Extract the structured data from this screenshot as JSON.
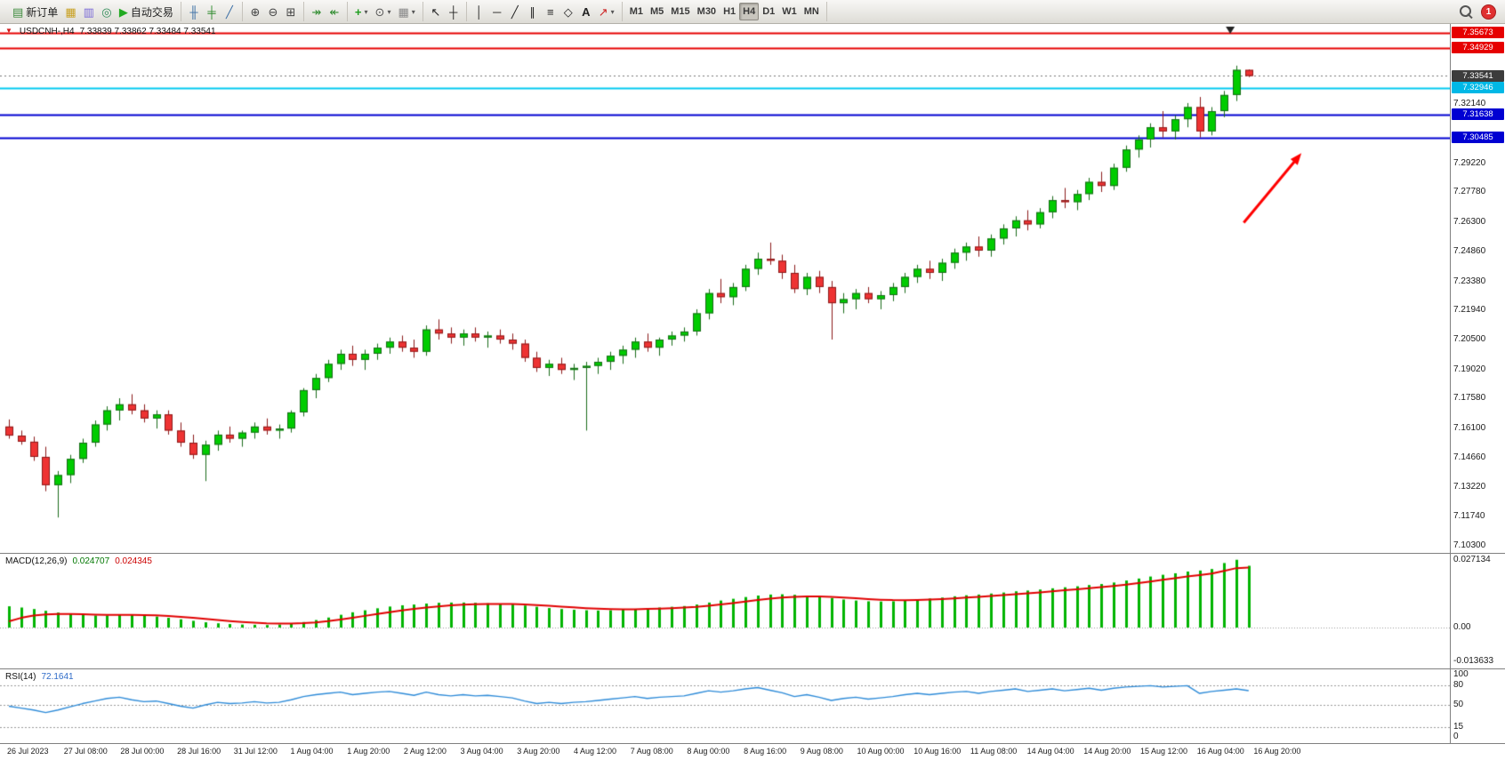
{
  "toolbar": {
    "notification_count": "1",
    "groups": [
      {
        "name": "trade-group",
        "items": [
          {
            "name": "new-order-button",
            "glyph": "▤",
            "color": "#3c8a3c",
            "label": "新订单"
          },
          {
            "name": "charts-window-button",
            "glyph": "▦",
            "color": "#c8a020"
          },
          {
            "name": "print-button",
            "glyph": "▥",
            "color": "#7a6ad8"
          },
          {
            "name": "alerts-button",
            "glyph": "◎",
            "color": "#2e8b57"
          },
          {
            "name": "autotrading-button",
            "glyph": "▶",
            "color": "#22aa22",
            "label": "自动交易"
          }
        ]
      },
      {
        "name": "chart-type-group",
        "items": [
          {
            "name": "bar-chart-button",
            "glyph": "╫",
            "color": "#3a6ea5"
          },
          {
            "name": "candlestick-chart-button",
            "glyph": "╪",
            "color": "#2e8b2e"
          },
          {
            "name": "line-chart-button",
            "glyph": "╱",
            "color": "#3a6ea5"
          }
        ]
      },
      {
        "name": "zoom-group",
        "items": [
          {
            "name": "zoom-in-button",
            "glyph": "⊕",
            "color": "#444444"
          },
          {
            "name": "zoom-out-button",
            "glyph": "⊖",
            "color": "#444444"
          },
          {
            "name": "tile-windows-button",
            "glyph": "⊞",
            "color": "#444444"
          }
        ]
      },
      {
        "name": "scroll-group",
        "items": [
          {
            "name": "auto-scroll-button",
            "glyph": "↠",
            "color": "#2e8b2e"
          },
          {
            "name": "chart-shift-button",
            "glyph": "↞",
            "color": "#2e8b2e"
          }
        ]
      },
      {
        "name": "insert-group",
        "items": [
          {
            "name": "indicators-button",
            "glyph": "+",
            "color": "#1e9e1e",
            "bold": true,
            "caret": true
          },
          {
            "name": "periods-button",
            "glyph": "⊙",
            "color": "#555555",
            "caret": true
          },
          {
            "name": "templates-button",
            "glyph": "▦",
            "color": "#888888",
            "caret": true
          }
        ]
      },
      {
        "name": "cursor-group",
        "items": [
          {
            "name": "cursor-button",
            "glyph": "↖",
            "color": "#222222"
          },
          {
            "name": "crosshair-button",
            "glyph": "┼",
            "color": "#222222"
          }
        ]
      },
      {
        "name": "draw-group",
        "items": [
          {
            "name": "vertical-line-button",
            "glyph": "│",
            "color": "#222222"
          },
          {
            "name": "horizontal-line-button",
            "glyph": "─",
            "color": "#222222"
          },
          {
            "name": "trendline-button",
            "glyph": "╱",
            "color": "#222222"
          },
          {
            "name": "channel-button",
            "glyph": "∥",
            "color": "#222222"
          },
          {
            "name": "fibonacci-button",
            "glyph": "≡",
            "color": "#222222"
          },
          {
            "name": "shapes-button",
            "glyph": "◇",
            "color": "#222222"
          },
          {
            "name": "text-button",
            "glyph": "A",
            "color": "#222222",
            "bold": true
          },
          {
            "name": "arrows-button",
            "glyph": "↗",
            "color": "#cc2222",
            "caret": true
          }
        ]
      },
      {
        "name": "timeframe-group",
        "items": [
          {
            "name": "timeframe-m1",
            "text": "M1"
          },
          {
            "name": "timeframe-m5",
            "text": "M5"
          },
          {
            "name": "timeframe-m15",
            "text": "M15"
          },
          {
            "name": "timeframe-m30",
            "text": "M30"
          },
          {
            "name": "timeframe-h1",
            "text": "H1"
          },
          {
            "name": "timeframe-h4",
            "text": "H4",
            "active": true
          },
          {
            "name": "timeframe-d1",
            "text": "D1"
          },
          {
            "name": "timeframe-w1",
            "text": "W1"
          },
          {
            "name": "timeframe-mn",
            "text": "MN"
          }
        ]
      }
    ]
  },
  "chart": {
    "symbol": "USDCNH-,H4",
    "ohlc_text": "7.33839 7.33862 7.33484 7.33541",
    "y_min": 7.0995,
    "y_max": 7.3611,
    "end_marker_index": 99.5,
    "colors": {
      "up_fill": "#00cc00",
      "up_edge": "#1a6b1a",
      "down_fill": "#ee3333",
      "down_edge": "#8b1a1a"
    },
    "price_lines": [
      {
        "label": "7.35673",
        "price": 7.35673,
        "line_color": "#e60000",
        "badge_bg": "#e60000",
        "width": 2,
        "style": "solid"
      },
      {
        "label": "7.34929",
        "price": 7.34929,
        "line_color": "#e60000",
        "badge_bg": "#e60000",
        "width": 2,
        "style": "solid"
      },
      {
        "label": "7.33541",
        "price": 7.33541,
        "line_color": "#777777",
        "badge_bg": "#3c3c3c",
        "width": 1,
        "style": "dotted"
      },
      {
        "label": "7.32946",
        "price": 7.32946,
        "line_color": "#00c8f0",
        "badge_bg": "#00b8e6",
        "width": 2,
        "style": "solid"
      },
      {
        "label": "7.31638",
        "price": 7.31638,
        "line_color": "#0000d2",
        "badge_bg": "#0000d2",
        "width": 2,
        "style": "solid"
      },
      {
        "label": "7.30485",
        "price": 7.30485,
        "line_color": "#0000d2",
        "badge_bg": "#0000d2",
        "width": 2,
        "style": "solid"
      }
    ],
    "y_ticks": [
      "7.32140",
      "7.29220",
      "7.27780",
      "7.26300",
      "7.24860",
      "7.23380",
      "7.21940",
      "7.20500",
      "7.19020",
      "7.17580",
      "7.16100",
      "7.14660",
      "7.13220",
      "7.11740",
      "7.10300"
    ],
    "x_labels": [
      "26 Jul 2023",
      "27 Jul 08:00",
      "28 Jul 00:00",
      "28 Jul 16:00",
      "31 Jul 12:00",
      "1 Aug 04:00",
      "1 Aug 20:00",
      "2 Aug 12:00",
      "3 Aug 04:00",
      "3 Aug 20:00",
      "4 Aug 12:00",
      "7 Aug 08:00",
      "8 Aug 00:00",
      "8 Aug 16:00",
      "9 Aug 08:00",
      "10 Aug 00:00",
      "10 Aug 16:00",
      "11 Aug 08:00",
      "14 Aug 04:00",
      "14 Aug 20:00",
      "15 Aug 12:00",
      "16 Aug 04:00",
      "16 Aug 20:00"
    ],
    "arrow": {
      "color": "#ff0000",
      "index_from": 100.6,
      "price_from": 7.2628,
      "index_to": 105.3,
      "price_to": 7.2972
    },
    "candles": [
      [
        7.162,
        7.1655,
        7.156,
        7.1575
      ],
      [
        7.1575,
        7.16,
        7.153,
        7.1545
      ],
      [
        7.1545,
        7.157,
        7.145,
        7.147
      ],
      [
        7.147,
        7.152,
        7.13,
        7.133
      ],
      [
        7.133,
        7.14,
        7.117,
        7.138
      ],
      [
        7.138,
        7.148,
        7.134,
        7.146
      ],
      [
        7.146,
        7.156,
        7.144,
        7.154
      ],
      [
        7.154,
        7.165,
        7.152,
        7.163
      ],
      [
        7.163,
        7.172,
        7.16,
        7.17
      ],
      [
        7.17,
        7.176,
        7.165,
        7.173
      ],
      [
        7.173,
        7.178,
        7.168,
        7.17
      ],
      [
        7.17,
        7.173,
        7.164,
        7.166
      ],
      [
        7.166,
        7.17,
        7.161,
        7.168
      ],
      [
        7.168,
        7.17,
        7.158,
        7.16
      ],
      [
        7.16,
        7.164,
        7.152,
        7.154
      ],
      [
        7.154,
        7.158,
        7.146,
        7.148
      ],
      [
        7.148,
        7.155,
        7.135,
        7.153
      ],
      [
        7.153,
        7.16,
        7.15,
        7.158
      ],
      [
        7.158,
        7.162,
        7.154,
        7.156
      ],
      [
        7.156,
        7.16,
        7.152,
        7.159
      ],
      [
        7.159,
        7.164,
        7.156,
        7.162
      ],
      [
        7.162,
        7.166,
        7.158,
        7.16
      ],
      [
        7.16,
        7.163,
        7.156,
        7.161
      ],
      [
        7.161,
        7.17,
        7.159,
        7.169
      ],
      [
        7.169,
        7.181,
        7.167,
        7.18
      ],
      [
        7.18,
        7.188,
        7.176,
        7.186
      ],
      [
        7.186,
        7.195,
        7.184,
        7.193
      ],
      [
        7.193,
        7.2,
        7.19,
        7.198
      ],
      [
        7.198,
        7.202,
        7.192,
        7.195
      ],
      [
        7.195,
        7.2,
        7.19,
        7.198
      ],
      [
        7.198,
        7.203,
        7.195,
        7.201
      ],
      [
        7.201,
        7.206,
        7.198,
        7.204
      ],
      [
        7.204,
        7.207,
        7.199,
        7.201
      ],
      [
        7.201,
        7.205,
        7.196,
        7.199
      ],
      [
        7.199,
        7.212,
        7.197,
        7.21
      ],
      [
        7.21,
        7.215,
        7.205,
        7.208
      ],
      [
        7.208,
        7.211,
        7.203,
        7.206
      ],
      [
        7.206,
        7.21,
        7.202,
        7.208
      ],
      [
        7.208,
        7.211,
        7.204,
        7.206
      ],
      [
        7.206,
        7.209,
        7.201,
        7.207
      ],
      [
        7.207,
        7.21,
        7.203,
        7.205
      ],
      [
        7.205,
        7.208,
        7.2,
        7.203
      ],
      [
        7.203,
        7.205,
        7.194,
        7.196
      ],
      [
        7.196,
        7.199,
        7.189,
        7.191
      ],
      [
        7.191,
        7.195,
        7.187,
        7.193
      ],
      [
        7.193,
        7.196,
        7.188,
        7.19
      ],
      [
        7.19,
        7.193,
        7.185,
        7.191
      ],
      [
        7.191,
        7.194,
        7.16,
        7.192
      ],
      [
        7.192,
        7.196,
        7.188,
        7.194
      ],
      [
        7.194,
        7.199,
        7.19,
        7.197
      ],
      [
        7.197,
        7.202,
        7.193,
        7.2
      ],
      [
        7.2,
        7.206,
        7.196,
        7.204
      ],
      [
        7.204,
        7.208,
        7.199,
        7.201
      ],
      [
        7.201,
        7.206,
        7.197,
        7.205
      ],
      [
        7.205,
        7.209,
        7.202,
        7.207
      ],
      [
        7.207,
        7.211,
        7.204,
        7.209
      ],
      [
        7.209,
        7.22,
        7.207,
        7.218
      ],
      [
        7.218,
        7.23,
        7.215,
        7.228
      ],
      [
        7.228,
        7.235,
        7.223,
        7.226
      ],
      [
        7.226,
        7.233,
        7.222,
        7.231
      ],
      [
        7.231,
        7.242,
        7.229,
        7.24
      ],
      [
        7.24,
        7.248,
        7.237,
        7.245
      ],
      [
        7.245,
        7.253,
        7.242,
        7.244
      ],
      [
        7.244,
        7.247,
        7.235,
        7.238
      ],
      [
        7.238,
        7.242,
        7.228,
        7.23
      ],
      [
        7.23,
        7.238,
        7.227,
        7.236
      ],
      [
        7.236,
        7.239,
        7.228,
        7.231
      ],
      [
        7.231,
        7.234,
        7.205,
        7.223
      ],
      [
        7.223,
        7.228,
        7.218,
        7.225
      ],
      [
        7.225,
        7.23,
        7.22,
        7.228
      ],
      [
        7.228,
        7.231,
        7.223,
        7.225
      ],
      [
        7.225,
        7.229,
        7.22,
        7.227
      ],
      [
        7.227,
        7.233,
        7.224,
        7.231
      ],
      [
        7.231,
        7.238,
        7.228,
        7.236
      ],
      [
        7.236,
        7.242,
        7.233,
        7.24
      ],
      [
        7.24,
        7.244,
        7.235,
        7.238
      ],
      [
        7.238,
        7.245,
        7.234,
        7.243
      ],
      [
        7.243,
        7.25,
        7.24,
        7.248
      ],
      [
        7.248,
        7.253,
        7.244,
        7.251
      ],
      [
        7.251,
        7.256,
        7.246,
        7.249
      ],
      [
        7.249,
        7.257,
        7.246,
        7.255
      ],
      [
        7.255,
        7.262,
        7.252,
        7.26
      ],
      [
        7.26,
        7.266,
        7.256,
        7.264
      ],
      [
        7.264,
        7.269,
        7.259,
        7.262
      ],
      [
        7.262,
        7.27,
        7.26,
        7.268
      ],
      [
        7.268,
        7.276,
        7.265,
        7.274
      ],
      [
        7.274,
        7.28,
        7.27,
        7.273
      ],
      [
        7.273,
        7.279,
        7.269,
        7.277
      ],
      [
        7.277,
        7.285,
        7.274,
        7.283
      ],
      [
        7.283,
        7.288,
        7.278,
        7.281
      ],
      [
        7.281,
        7.292,
        7.279,
        7.29
      ],
      [
        7.29,
        7.301,
        7.288,
        7.299
      ],
      [
        7.299,
        7.306,
        7.295,
        7.304
      ],
      [
        7.304,
        7.312,
        7.3,
        7.31
      ],
      [
        7.31,
        7.318,
        7.305,
        7.308
      ],
      [
        7.308,
        7.316,
        7.304,
        7.314
      ],
      [
        7.314,
        7.322,
        7.31,
        7.32
      ],
      [
        7.32,
        7.325,
        7.305,
        7.308
      ],
      [
        7.308,
        7.32,
        7.306,
        7.318
      ],
      [
        7.318,
        7.328,
        7.315,
        7.326
      ],
      [
        7.326,
        7.3405,
        7.323,
        7.3384
      ],
      [
        7.33839,
        7.33862,
        7.33484,
        7.33541
      ]
    ]
  },
  "macd": {
    "label": "MACD(12,26,9)",
    "value": "0.024707",
    "signal_value": "0.024345",
    "range": [
      -0.016,
      0.0295
    ],
    "axis": [
      {
        "v": 0.027134,
        "t": "0.027134"
      },
      {
        "v": 0,
        "t": "0.00"
      },
      {
        "v": -0.013633,
        "t": "-0.013633"
      }
    ],
    "colors": {
      "hist": "#00b400",
      "signal": "#e00000"
    },
    "histogram": [
      0.0085,
      0.008,
      0.0074,
      0.0067,
      0.006,
      0.0054,
      0.005,
      0.0048,
      0.0048,
      0.005,
      0.005,
      0.0048,
      0.0044,
      0.0039,
      0.0033,
      0.0027,
      0.0021,
      0.0017,
      0.0014,
      0.0012,
      0.0011,
      0.001,
      0.0012,
      0.0016,
      0.0022,
      0.003,
      0.004,
      0.0051,
      0.0061,
      0.0069,
      0.0077,
      0.0084,
      0.0089,
      0.0092,
      0.0096,
      0.0099,
      0.01,
      0.01,
      0.0099,
      0.0097,
      0.0095,
      0.0092,
      0.0088,
      0.0083,
      0.0078,
      0.0074,
      0.0071,
      0.0069,
      0.0068,
      0.0069,
      0.0071,
      0.0074,
      0.0077,
      0.008,
      0.0083,
      0.0086,
      0.0092,
      0.01,
      0.0108,
      0.0115,
      0.0122,
      0.0128,
      0.0132,
      0.0133,
      0.0131,
      0.0128,
      0.0124,
      0.0118,
      0.0112,
      0.0108,
      0.0105,
      0.0104,
      0.0105,
      0.0108,
      0.0112,
      0.0116,
      0.012,
      0.0125,
      0.0129,
      0.0132,
      0.0136,
      0.014,
      0.0145,
      0.0148,
      0.0152,
      0.0157,
      0.0161,
      0.0165,
      0.017,
      0.0174,
      0.018,
      0.0188,
      0.0196,
      0.0204,
      0.0211,
      0.0217,
      0.0224,
      0.0228,
      0.0234,
      0.0258,
      0.0271,
      0.0247
    ]
  },
  "rsi": {
    "label": "RSI(14)",
    "value": "72.1641",
    "levels": [
      {
        "v": 100,
        "t": "100",
        "dashed": false
      },
      {
        "v": 80,
        "t": "80",
        "dashed": true
      },
      {
        "v": 50,
        "t": "50",
        "dashed": true
      },
      {
        "v": 15,
        "t": "15",
        "dashed": true
      },
      {
        "v": 0,
        "t": "0",
        "dashed": false
      }
    ],
    "color": "#2e8bd8",
    "values": [
      48,
      45,
      42,
      38,
      42,
      47,
      52,
      56,
      60,
      62,
      58,
      55,
      56,
      52,
      48,
      45,
      50,
      54,
      52,
      53,
      55,
      53,
      54,
      58,
      63,
      66,
      68,
      70,
      66,
      68,
      70,
      71,
      68,
      65,
      70,
      66,
      64,
      66,
      64,
      65,
      63,
      61,
      56,
      52,
      54,
      52,
      54,
      55,
      57,
      59,
      61,
      63,
      60,
      62,
      63,
      64,
      68,
      72,
      70,
      72,
      75,
      77,
      73,
      69,
      63,
      66,
      62,
      57,
      60,
      62,
      59,
      61,
      63,
      66,
      68,
      66,
      68,
      70,
      71,
      68,
      71,
      73,
      75,
      71,
      73,
      75,
      72,
      74,
      76,
      73,
      76,
      78,
      79,
      80,
      78,
      79,
      80,
      68,
      71,
      73,
      75,
      72.16
    ]
  }
}
